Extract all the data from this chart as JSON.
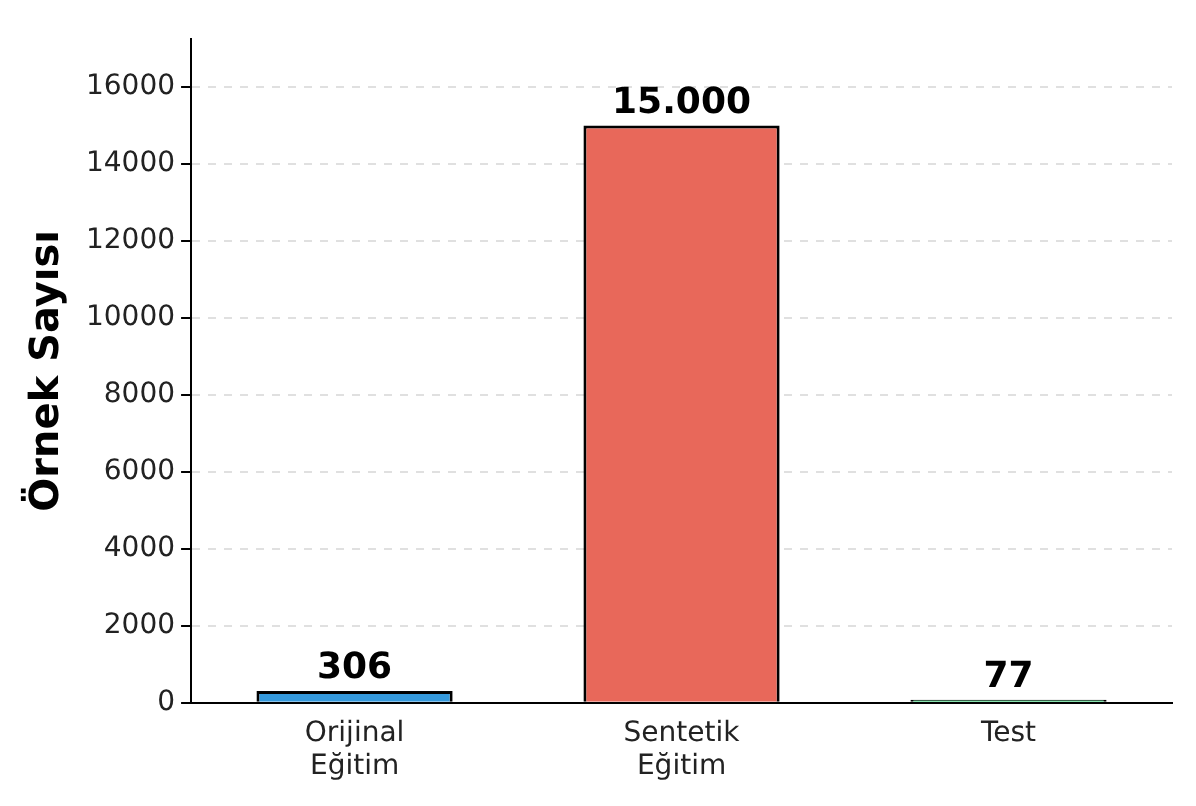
{
  "chart_data": {
    "type": "bar",
    "ylabel": "Örnek Sayısı",
    "categories": [
      "Orijinal Eğitim",
      "Sentetik Eğitim",
      "Test"
    ],
    "values": [
      306,
      15000,
      77
    ],
    "colors": [
      "#3498db",
      "#e8685a",
      "#2ecc71"
    ],
    "value_labels": [
      "306",
      "15.000",
      "77"
    ],
    "ylim": [
      0,
      17250
    ],
    "yticks": [
      0,
      2000,
      4000,
      6000,
      8000,
      10000,
      12000,
      14000,
      16000
    ],
    "grid": "y",
    "legend": false
  }
}
